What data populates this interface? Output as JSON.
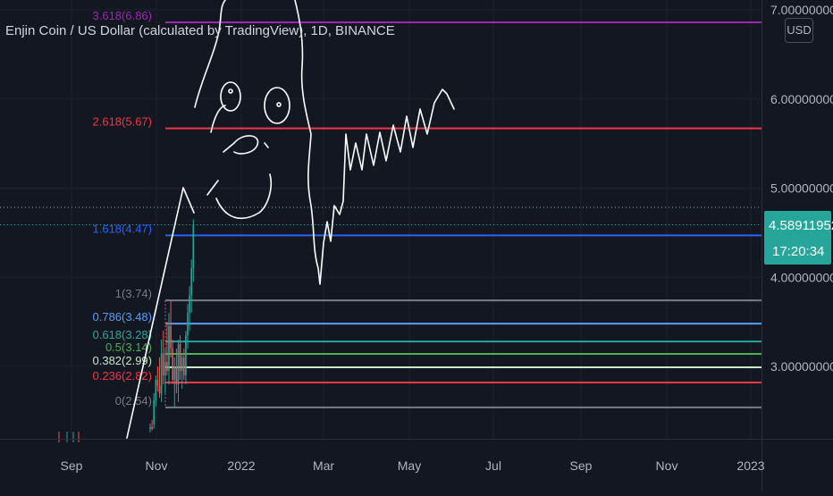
{
  "header": {
    "symbol_title": "Enjin Coin / US Dollar (calculated by TradingView), 1D, BINANCE",
    "currency_badge": "USD"
  },
  "last_price": {
    "value": "4.58911952",
    "countdown": "17:20:34",
    "color": "#26a69a"
  },
  "colors": {
    "background": "#131722",
    "axis_text": "#b2b5be",
    "up": "#26a69a",
    "down": "#ef5350",
    "drawing": "#ffffff"
  },
  "chart_data": {
    "type": "line",
    "title": "Enjin Coin / US Dollar (calculated by TradingView), 1D, BINANCE",
    "xlabel": "",
    "ylabel": "",
    "x_ticks": [
      "Sep",
      "Nov",
      "2022",
      "Mar",
      "May",
      "Jul",
      "Sep",
      "Nov",
      "2023"
    ],
    "y_ticks": [
      "7.00000000",
      "6.00000000",
      "5.00000000",
      "4.00000000",
      "3.00000000"
    ],
    "y_tick_values": [
      7,
      6,
      5,
      4,
      3
    ],
    "ylim": [
      2.2,
      7.1
    ],
    "grid": true,
    "last_price_value": 4.58911952,
    "fib_levels": [
      {
        "label": "0(2.54)",
        "ratio": 0,
        "price": 2.54,
        "color": "#787b86"
      },
      {
        "label": "0.236(2.82)",
        "ratio": 0.236,
        "price": 2.82,
        "color": "#f23645"
      },
      {
        "label": "0.382(2.99)",
        "ratio": 0.382,
        "price": 2.99,
        "color": "#c8e6c9"
      },
      {
        "label": "0.5(3.14)",
        "ratio": 0.5,
        "price": 3.14,
        "color": "#4caf50"
      },
      {
        "label": "0.618(3.28)",
        "ratio": 0.618,
        "price": 3.28,
        "color": "#26a69a"
      },
      {
        "label": "0.786(3.48)",
        "ratio": 0.786,
        "price": 3.48,
        "color": "#5b9cf6"
      },
      {
        "label": "1(3.74)",
        "ratio": 1,
        "price": 3.74,
        "color": "#787b86"
      },
      {
        "label": "1.618(4.47)",
        "ratio": 1.618,
        "price": 4.47,
        "color": "#2962ff"
      },
      {
        "label": "2.618(5.67)",
        "ratio": 2.618,
        "price": 5.67,
        "color": "#f23645"
      },
      {
        "label": "3.618(6.86)",
        "ratio": 3.618,
        "price": 6.86,
        "color": "#9c27b0"
      }
    ],
    "candles": [
      {
        "o": 2.3,
        "h": 2.36,
        "l": 2.26,
        "c": 2.32
      },
      {
        "o": 2.32,
        "h": 2.4,
        "l": 2.28,
        "c": 2.3
      },
      {
        "o": 2.35,
        "h": 2.7,
        "l": 2.3,
        "c": 2.62
      },
      {
        "o": 2.62,
        "h": 2.9,
        "l": 2.55,
        "c": 2.85
      },
      {
        "o": 2.85,
        "h": 3.0,
        "l": 2.72,
        "c": 2.78
      },
      {
        "o": 2.78,
        "h": 3.1,
        "l": 2.65,
        "c": 2.7
      },
      {
        "o": 2.7,
        "h": 3.3,
        "l": 2.6,
        "c": 3.15
      },
      {
        "o": 3.15,
        "h": 3.4,
        "l": 2.8,
        "c": 2.9
      },
      {
        "o": 2.9,
        "h": 3.2,
        "l": 2.7,
        "c": 3.05
      },
      {
        "o": 3.05,
        "h": 3.5,
        "l": 2.9,
        "c": 2.95
      },
      {
        "o": 2.95,
        "h": 3.6,
        "l": 2.8,
        "c": 3.45
      },
      {
        "o": 3.45,
        "h": 3.74,
        "l": 3.1,
        "c": 3.2
      },
      {
        "o": 3.2,
        "h": 3.3,
        "l": 2.8,
        "c": 2.85
      },
      {
        "o": 2.85,
        "h": 3.1,
        "l": 2.54,
        "c": 3.0
      },
      {
        "o": 3.0,
        "h": 3.2,
        "l": 2.7,
        "c": 2.8
      },
      {
        "o": 2.8,
        "h": 3.3,
        "l": 2.6,
        "c": 3.25
      },
      {
        "o": 3.25,
        "h": 3.35,
        "l": 2.85,
        "c": 2.95
      },
      {
        "o": 2.95,
        "h": 3.15,
        "l": 2.75,
        "c": 3.1
      },
      {
        "o": 3.1,
        "h": 3.2,
        "l": 2.85,
        "c": 2.9
      },
      {
        "o": 2.9,
        "h": 3.4,
        "l": 2.8,
        "c": 3.35
      },
      {
        "o": 3.35,
        "h": 3.7,
        "l": 3.2,
        "c": 3.6
      },
      {
        "o": 3.6,
        "h": 3.9,
        "l": 3.4,
        "c": 3.8
      },
      {
        "o": 3.8,
        "h": 4.2,
        "l": 3.6,
        "c": 4.1
      },
      {
        "o": 4.1,
        "h": 4.65,
        "l": 3.95,
        "c": 4.59
      }
    ]
  }
}
